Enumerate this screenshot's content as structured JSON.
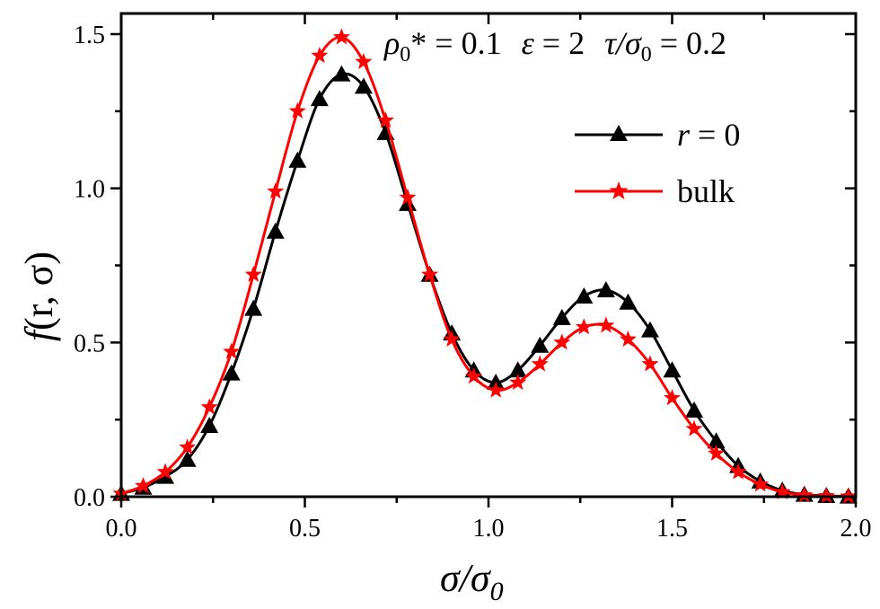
{
  "chart_data": {
    "type": "line",
    "title": "",
    "annotation": "ρ0* = 0.1   ε = 2   τ/σ0 = 0.2",
    "annotation_parts": {
      "rho": "ρ",
      "rho_sub": "0",
      "rho_rest": "* = 0.1",
      "eps": "ε",
      "eps_rest": " = 2",
      "tau": "τ/σ",
      "tau_sub": "0",
      "tau_rest": " = 0.2"
    },
    "xlabel": {
      "main": "σ/σ",
      "sub": "0"
    },
    "ylabel": {
      "f": "f",
      "args": "(r, σ)"
    },
    "xlim": [
      0,
      2.0
    ],
    "ylim": [
      0,
      1.5
    ],
    "xticks": [
      "0.0",
      "0.5",
      "1.0",
      "1.5",
      "2.0"
    ],
    "yticks": [
      "0.0",
      "0.5",
      "1.0",
      "1.5"
    ],
    "grid": false,
    "legend_placement": "top-right",
    "x": [
      0.0,
      0.06,
      0.12,
      0.18,
      0.24,
      0.3,
      0.36,
      0.42,
      0.48,
      0.54,
      0.6,
      0.66,
      0.72,
      0.78,
      0.84,
      0.9,
      0.96,
      1.02,
      1.08,
      1.14,
      1.2,
      1.26,
      1.32,
      1.38,
      1.44,
      1.5,
      1.56,
      1.62,
      1.68,
      1.74,
      1.8,
      1.86,
      1.92,
      1.98
    ],
    "series": [
      {
        "name": "r = 0",
        "name_parts": {
          "var": "r",
          "rest": " = 0"
        },
        "color": "#000000",
        "marker": "triangle",
        "values": [
          0.01,
          0.03,
          0.065,
          0.12,
          0.23,
          0.4,
          0.61,
          0.86,
          1.09,
          1.29,
          1.37,
          1.33,
          1.18,
          0.95,
          0.72,
          0.53,
          0.41,
          0.37,
          0.41,
          0.49,
          0.58,
          0.65,
          0.67,
          0.63,
          0.54,
          0.41,
          0.28,
          0.18,
          0.1,
          0.05,
          0.02,
          0.007,
          0.003,
          0.001
        ]
      },
      {
        "name": "bulk",
        "name_parts": {
          "var": "",
          "rest": "bulk"
        },
        "color": "#ff0000",
        "marker": "star",
        "values": [
          0.01,
          0.035,
          0.08,
          0.16,
          0.29,
          0.47,
          0.72,
          0.99,
          1.25,
          1.43,
          1.49,
          1.41,
          1.22,
          0.97,
          0.72,
          0.51,
          0.39,
          0.345,
          0.37,
          0.43,
          0.5,
          0.55,
          0.555,
          0.51,
          0.43,
          0.32,
          0.22,
          0.14,
          0.08,
          0.04,
          0.015,
          0.005,
          0.002,
          0.001
        ]
      }
    ]
  }
}
